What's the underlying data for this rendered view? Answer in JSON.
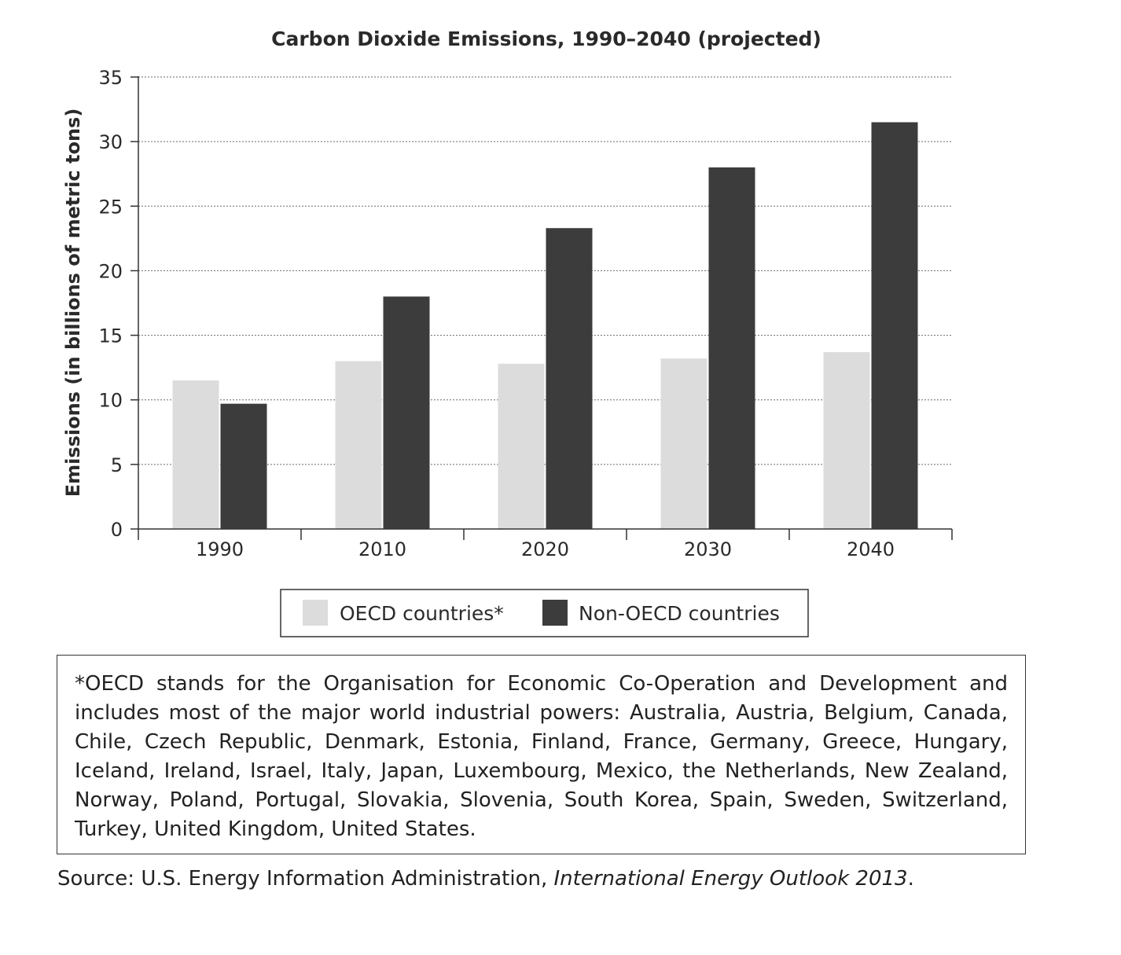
{
  "chart_data": {
    "type": "bar",
    "title": "Carbon Dioxide Emissions, 1990–2040 (projected)",
    "xlabel": "",
    "ylabel": "Emissions (in billions of metric tons)",
    "categories": [
      "1990",
      "2010",
      "2020",
      "2030",
      "2040"
    ],
    "series": [
      {
        "name": "OECD countries*",
        "values": [
          11.5,
          13.0,
          12.8,
          13.2,
          13.7
        ]
      },
      {
        "name": "Non-OECD countries",
        "values": [
          9.7,
          18.0,
          23.3,
          28.0,
          31.5
        ]
      }
    ],
    "ylim": [
      0,
      35
    ],
    "yticks": [
      "0",
      "5",
      "10",
      "15",
      "20",
      "25",
      "30",
      "35"
    ],
    "grid": true,
    "legend_position": "bottom-center",
    "colors": {
      "OECD countries*": "#dcdcdc",
      "Non-OECD countries": "#3c3c3c"
    }
  },
  "footnote": "*OECD stands for the Organisation for Economic Co-Operation and Development and includes most of the major world industrial powers: Australia, Austria, Belgium, Canada, Chile, Czech Republic, Denmark, Estonia, Finland, France, Germany, Greece, Hungary, Iceland, Ireland, Israel, Italy, Japan, Luxembourg, Mexico, the Netherlands, New Zealand, Norway, Poland, Portugal, Slovakia, Slovenia, South Korea, Spain, Sweden, Switzerland, Turkey, United Kingdom, United States.",
  "source": {
    "prefix": "Source: U.S. Energy Information Administration, ",
    "title": "International Energy Outlook 2013",
    "suffix": "."
  }
}
